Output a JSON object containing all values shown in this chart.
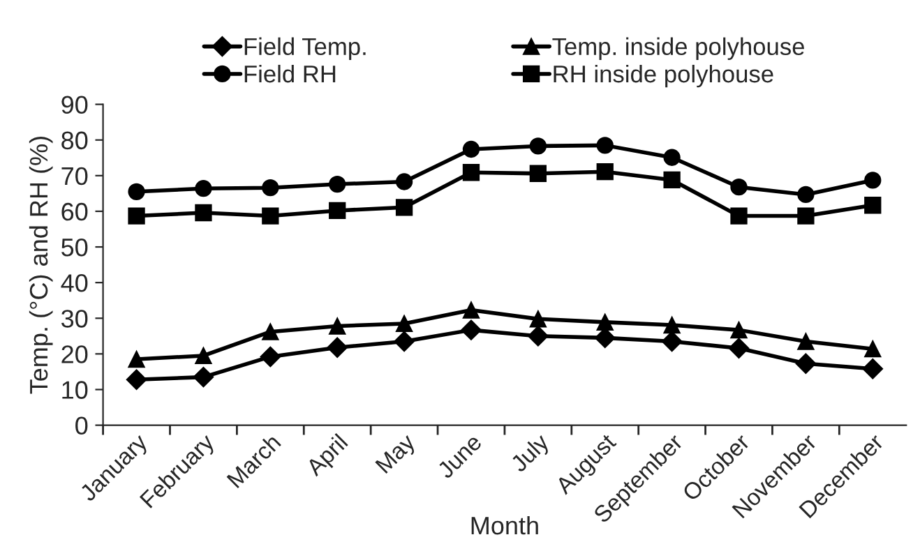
{
  "chart_data": {
    "type": "line",
    "xlabel": "Month",
    "ylabel": "Temp. (°C) and RH (%)",
    "categories": [
      "January",
      "February",
      "March",
      "April",
      "May",
      "June",
      "July",
      "August",
      "September",
      "October",
      "November",
      "December"
    ],
    "series": [
      {
        "name": "Field Temp.",
        "color": "#000000",
        "marker": "diamond",
        "values": [
          12.8,
          13.5,
          19.2,
          21.8,
          23.5,
          26.7,
          25.0,
          24.5,
          23.5,
          21.6,
          17.3,
          15.8
        ]
      },
      {
        "name": "Field RH",
        "color": "#000000",
        "marker": "circle",
        "values": [
          65.5,
          66.4,
          66.6,
          67.6,
          68.3,
          77.4,
          78.3,
          78.5,
          75.1,
          66.8,
          64.7,
          68.7
        ]
      },
      {
        "name": "Temp. inside polyhouse",
        "color": "#000000",
        "marker": "triangle",
        "values": [
          18.5,
          19.5,
          26.2,
          27.8,
          28.5,
          32.3,
          29.8,
          28.9,
          28.1,
          26.7,
          23.5,
          21.4
        ]
      },
      {
        "name": "RH inside polyhouse",
        "color": "#000000",
        "marker": "square",
        "values": [
          58.7,
          59.6,
          58.7,
          60.2,
          61.1,
          70.9,
          70.6,
          71.1,
          68.8,
          58.7,
          58.7,
          61.7
        ]
      }
    ],
    "ylim": [
      0,
      90
    ],
    "yticks": [
      0,
      10,
      20,
      30,
      40,
      50,
      60,
      70,
      80,
      90
    ],
    "grid": false,
    "legend": "top",
    "line_style": "solid"
  }
}
